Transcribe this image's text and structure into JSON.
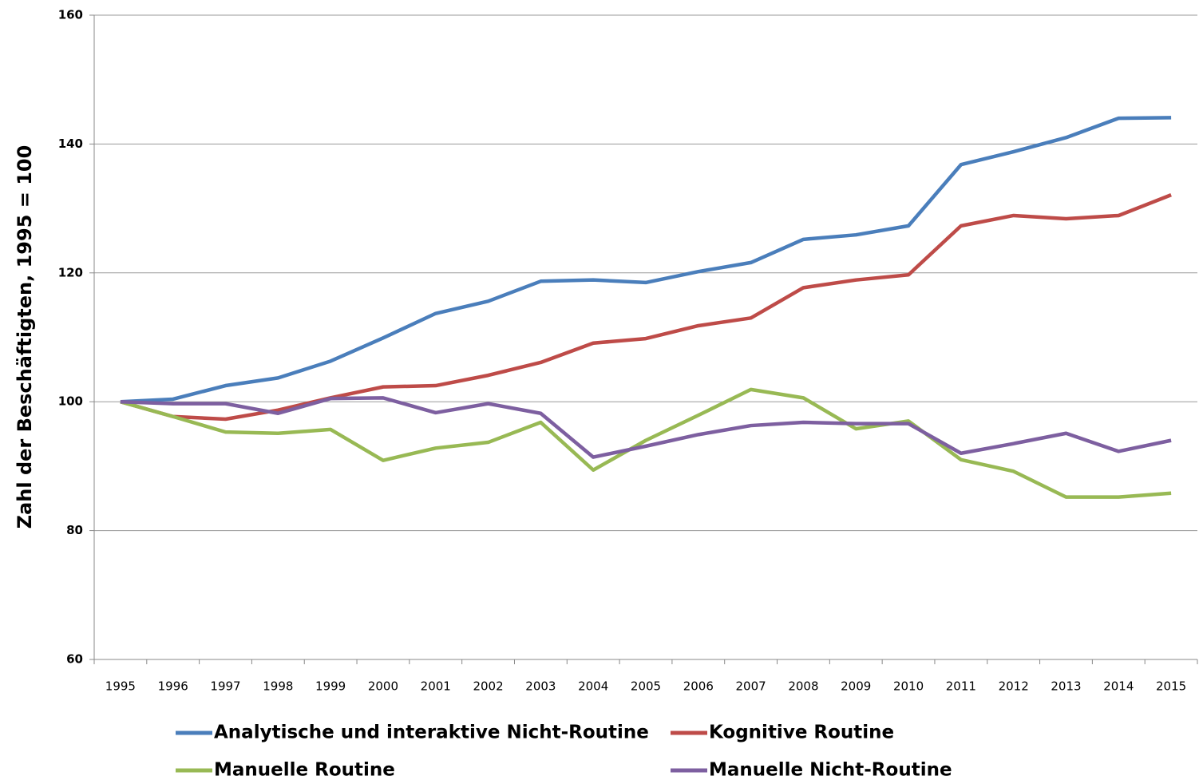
{
  "chart_data": {
    "type": "line",
    "y_label": "Zahl der Beschäftigten, 1995 = 100",
    "categories": [
      "1995",
      "1996",
      "1997",
      "1998",
      "1999",
      "2000",
      "2001",
      "2002",
      "2003",
      "2004",
      "2005",
      "2006",
      "2007",
      "2008",
      "2009",
      "2010",
      "2011",
      "2012",
      "2013",
      "2014",
      "2015"
    ],
    "series": [
      {
        "name": "Analytische und interaktive Nicht-Routine",
        "color": "#4a7ebb",
        "values": [
          100,
          100.4,
          102.5,
          103.7,
          106.3,
          109.9,
          113.7,
          115.6,
          118.7,
          118.9,
          118.5,
          120.2,
          121.6,
          125.2,
          125.9,
          127.3,
          136.8,
          138.8,
          141,
          144,
          144.1
        ]
      },
      {
        "name": "Kognitive Routine",
        "color": "#be4b48",
        "values": [
          100,
          97.7,
          97.3,
          98.7,
          100.6,
          102.3,
          102.5,
          104.1,
          106.1,
          109.1,
          109.8,
          111.8,
          113,
          117.7,
          118.9,
          119.7,
          127.3,
          128.9,
          128.4,
          128.9,
          132.1
        ]
      },
      {
        "name": "Manuelle Routine",
        "color": "#98b954",
        "values": [
          100,
          97.7,
          95.3,
          95.1,
          95.7,
          90.9,
          92.8,
          93.7,
          96.8,
          89.4,
          94,
          97.9,
          101.9,
          100.6,
          95.8,
          97,
          91,
          89.2,
          85.2,
          85.2,
          85.8
        ]
      },
      {
        "name": "Manuelle Nicht-Routine",
        "color": "#7d5fa0",
        "values": [
          100,
          99.7,
          99.7,
          98.2,
          100.5,
          100.6,
          98.3,
          99.7,
          98.2,
          91.4,
          93.1,
          94.9,
          96.3,
          96.8,
          96.6,
          96.6,
          92,
          93.5,
          95.1,
          92.3,
          94
        ]
      }
    ],
    "ylim": [
      60,
      160
    ],
    "yticks": [
      60,
      80,
      100,
      120,
      140,
      160
    ],
    "grid": true
  }
}
